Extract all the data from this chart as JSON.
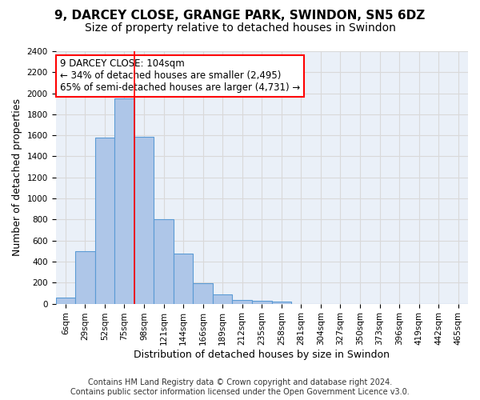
{
  "title_line1": "9, DARCEY CLOSE, GRANGE PARK, SWINDON, SN5 6DZ",
  "title_line2": "Size of property relative to detached houses in Swindon",
  "xlabel": "Distribution of detached houses by size in Swindon",
  "ylabel": "Number of detached properties",
  "footer_line1": "Contains HM Land Registry data © Crown copyright and database right 2024.",
  "footer_line2": "Contains public sector information licensed under the Open Government Licence v3.0.",
  "bin_labels": [
    "6sqm",
    "29sqm",
    "52sqm",
    "75sqm",
    "98sqm",
    "121sqm",
    "144sqm",
    "166sqm",
    "189sqm",
    "212sqm",
    "235sqm",
    "258sqm",
    "281sqm",
    "304sqm",
    "327sqm",
    "350sqm",
    "373sqm",
    "396sqm",
    "419sqm",
    "442sqm",
    "465sqm"
  ],
  "bar_heights": [
    60,
    500,
    1580,
    1950,
    1590,
    800,
    475,
    195,
    90,
    35,
    25,
    20,
    0,
    0,
    0,
    0,
    0,
    0,
    0,
    0,
    0
  ],
  "bar_color": "#aec6e8",
  "bar_edge_color": "#5b9bd5",
  "grid_color": "#d9d9d9",
  "background_color": "#eaf0f8",
  "vline_x_index": 4,
  "vline_color": "red",
  "annotation_text": "9 DARCEY CLOSE: 104sqm\n← 34% of detached houses are smaller (2,495)\n65% of semi-detached houses are larger (4,731) →",
  "annotation_box_color": "white",
  "annotation_box_edge_color": "red",
  "annotation_fontsize": 8.5,
  "ylim": [
    0,
    2400
  ],
  "yticks": [
    0,
    200,
    400,
    600,
    800,
    1000,
    1200,
    1400,
    1600,
    1800,
    2000,
    2200,
    2400
  ],
  "title_fontsize1": 11,
  "title_fontsize2": 10,
  "xlabel_fontsize": 9,
  "ylabel_fontsize": 9,
  "tick_fontsize": 7.5,
  "footer_fontsize": 7
}
